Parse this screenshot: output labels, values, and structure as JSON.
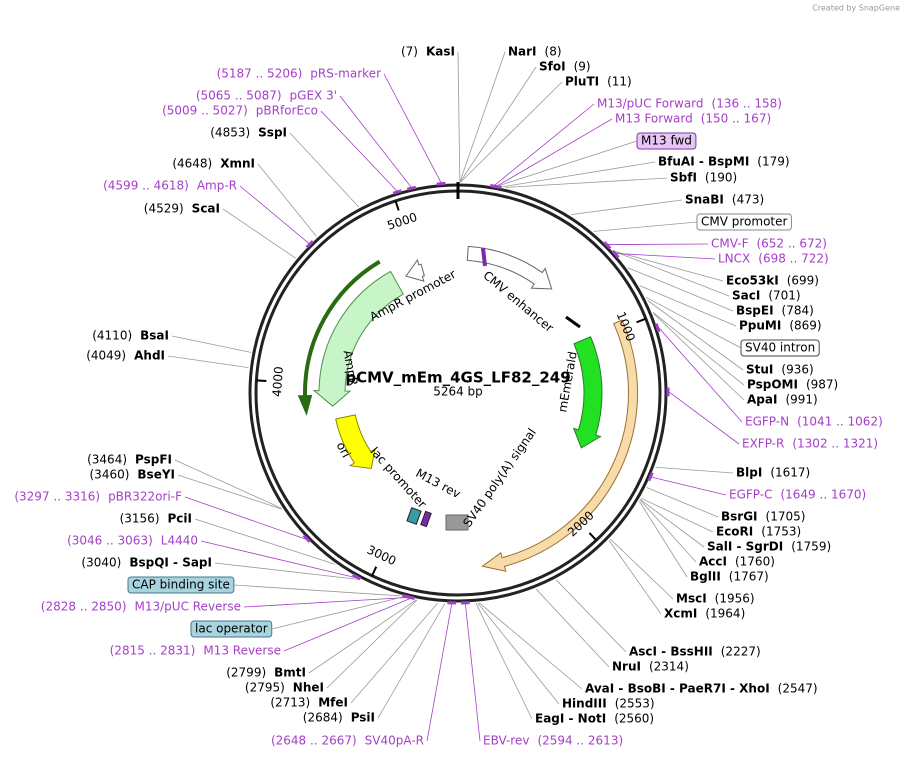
{
  "credit": "Created by SnapGene",
  "map": {
    "name": "pCMV_mEm_4GS_LF82_249",
    "length": "5264 bp"
  },
  "ring_labels": [
    "1000",
    "2000",
    "3000",
    "4000",
    "5000"
  ],
  "features": [
    "CMV enhancer",
    "mEmerald",
    "SV40 poly(A) signal",
    "M13 rev",
    "lac promoter",
    "ori",
    "AmpR",
    "AmpR promoter"
  ],
  "boxed_labels": [
    "M13 fwd",
    "CMV promoter",
    "SV40 intron",
    "CAP binding site",
    "lac operator"
  ],
  "enzymes": [
    {
      "name": "KasI",
      "pos": "(7)"
    },
    {
      "name": "NarI",
      "pos": "(8)"
    },
    {
      "name": "SfoI",
      "pos": "(9)"
    },
    {
      "name": "PluTI",
      "pos": "(11)"
    },
    {
      "name": "BfuAI - BspMI",
      "pos": "(179)"
    },
    {
      "name": "SbfI",
      "pos": "(190)"
    },
    {
      "name": "SnaBI",
      "pos": "(473)"
    },
    {
      "name": "Eco53kI",
      "pos": "(699)"
    },
    {
      "name": "SacI",
      "pos": "(701)"
    },
    {
      "name": "BspEI",
      "pos": "(784)"
    },
    {
      "name": "PpuMI",
      "pos": "(869)"
    },
    {
      "name": "StuI",
      "pos": "(936)"
    },
    {
      "name": "PspOMI",
      "pos": "(987)"
    },
    {
      "name": "ApaI",
      "pos": "(991)"
    },
    {
      "name": "BlpI",
      "pos": "(1617)"
    },
    {
      "name": "BsrGI",
      "pos": "(1705)"
    },
    {
      "name": "EcoRI",
      "pos": "(1753)"
    },
    {
      "name": "SalI - SgrDI",
      "pos": "(1759)"
    },
    {
      "name": "AccI",
      "pos": "(1760)"
    },
    {
      "name": "BglII",
      "pos": "(1767)"
    },
    {
      "name": "MscI",
      "pos": "(1956)"
    },
    {
      "name": "XcmI",
      "pos": "(1964)"
    },
    {
      "name": "AscI - BssHII",
      "pos": "(2227)"
    },
    {
      "name": "NruI",
      "pos": "(2314)"
    },
    {
      "name": "AvaI - BsoBI - PaeR7I - XhoI",
      "pos": "(2547)"
    },
    {
      "name": "HindIII",
      "pos": "(2553)"
    },
    {
      "name": "EagI - NotI",
      "pos": "(2560)"
    },
    {
      "name": "PsiI",
      "pos": "(2684)"
    },
    {
      "name": "MfeI",
      "pos": "(2713)"
    },
    {
      "name": "NheI",
      "pos": "(2795)"
    },
    {
      "name": "BmtI",
      "pos": "(2799)"
    },
    {
      "name": "BspQI - SapI",
      "pos": "(3040)"
    },
    {
      "name": "PciI",
      "pos": "(3156)"
    },
    {
      "name": "BseYI",
      "pos": "(3460)"
    },
    {
      "name": "PspFI",
      "pos": "(3464)"
    },
    {
      "name": "AhdI",
      "pos": "(4049)"
    },
    {
      "name": "BsaI",
      "pos": "(4110)"
    },
    {
      "name": "ScaI",
      "pos": "(4529)"
    },
    {
      "name": "XmnI",
      "pos": "(4648)"
    },
    {
      "name": "SspI",
      "pos": "(4853)"
    }
  ],
  "primers": [
    {
      "name": "M13/pUC Forward",
      "range": "(136 .. 158)"
    },
    {
      "name": "M13 Forward",
      "range": "(150 .. 167)"
    },
    {
      "name": "CMV-F",
      "range": "(652 .. 672)"
    },
    {
      "name": "LNCX",
      "range": "(698 .. 722)"
    },
    {
      "name": "EGFP-N",
      "range": "(1041 .. 1062)"
    },
    {
      "name": "EXFP-R",
      "range": "(1302 .. 1321)"
    },
    {
      "name": "EGFP-C",
      "range": "(1649 .. 1670)"
    },
    {
      "name": "EBV-rev",
      "range": "(2594 .. 2613)"
    },
    {
      "name": "pRS-marker",
      "range": "(5187 .. 5206)"
    },
    {
      "name": "pGEX 3'",
      "range": "(5065 .. 5087)"
    },
    {
      "name": "pBRforEco",
      "range": "(5009 .. 5027)"
    },
    {
      "name": "Amp-R",
      "range": "(4599 .. 4618)"
    },
    {
      "name": "pBR322ori-F",
      "range": "(3297 .. 3316)"
    },
    {
      "name": "L4440",
      "range": "(3046 .. 3063)"
    },
    {
      "name": "M13/pUC Reverse",
      "range": "(2828 .. 2850)"
    },
    {
      "name": "M13 Reverse",
      "range": "(2815 .. 2831)"
    },
    {
      "name": "SV40pA-R",
      "range": "(2648 .. 2667)"
    }
  ]
}
